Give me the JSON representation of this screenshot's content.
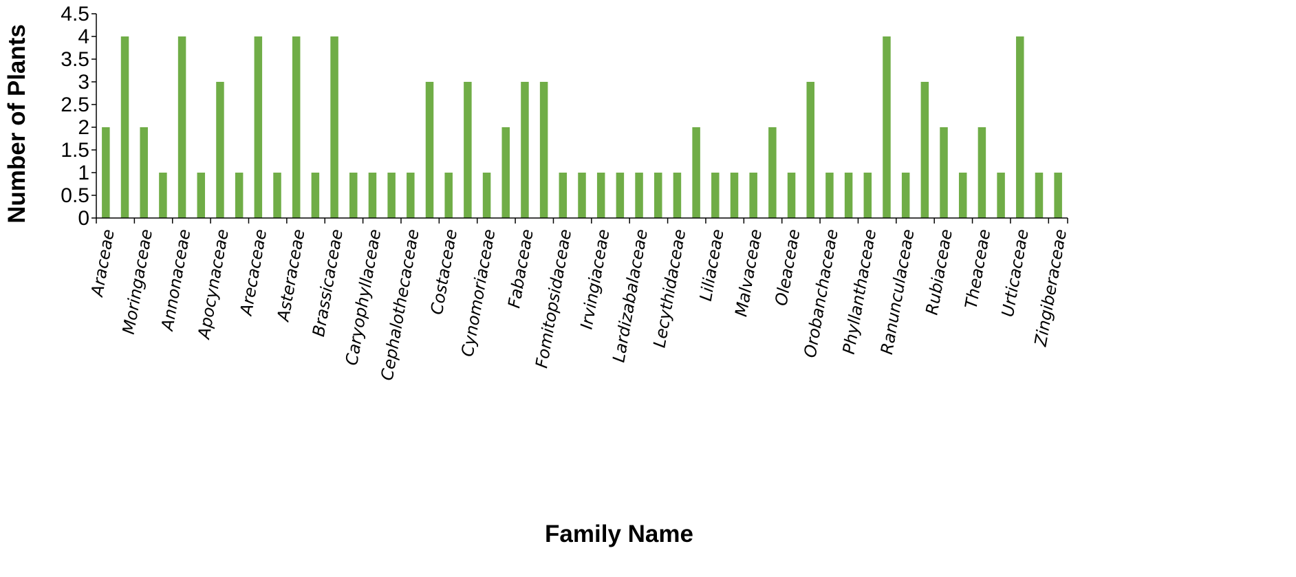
{
  "chart_data": {
    "type": "bar",
    "title": "",
    "xlabel": "Family Name",
    "ylabel": "Number of Plants",
    "ylim": [
      0,
      4.5
    ],
    "yticks": [
      0,
      0.5,
      1,
      1.5,
      2,
      2.5,
      3,
      3.5,
      4,
      4.5
    ],
    "grid": false,
    "legend": "none",
    "bar_color": "#70ad47",
    "values": [
      2,
      4,
      2,
      1,
      4,
      1,
      3,
      1,
      4,
      1,
      4,
      1,
      4,
      1,
      1,
      1,
      1,
      3,
      1,
      3,
      1,
      2,
      3,
      3,
      1,
      1,
      1,
      1,
      1,
      1,
      1,
      2,
      1,
      1,
      1,
      2,
      1,
      3,
      1,
      1,
      1,
      4,
      1,
      3,
      2,
      1,
      2,
      1,
      4,
      1,
      1
    ],
    "tick_labels": [
      "Araceae",
      "Moringaceae",
      "Annonaceae",
      "Apocynaceae",
      "Arecaceae",
      "Asteraceae",
      "Brassicaceae",
      "Caryophyllaceae",
      "Cephalothecaceae",
      "Costaceae",
      "Cynomoriaceae",
      "Fabaceae",
      "Fomitopsidaceae",
      "Irvingiaceae",
      "Lardizabalaceae",
      "Lecythidaceae",
      "Liliaceae",
      "Malvaceae",
      "Oleaceae",
      "Orobanchaceae",
      "Phyllanthaceae",
      "Ranunculaceae",
      "Rubiaceae",
      "Theaceae",
      "Urticaceae",
      "Zingiberaceae"
    ]
  }
}
